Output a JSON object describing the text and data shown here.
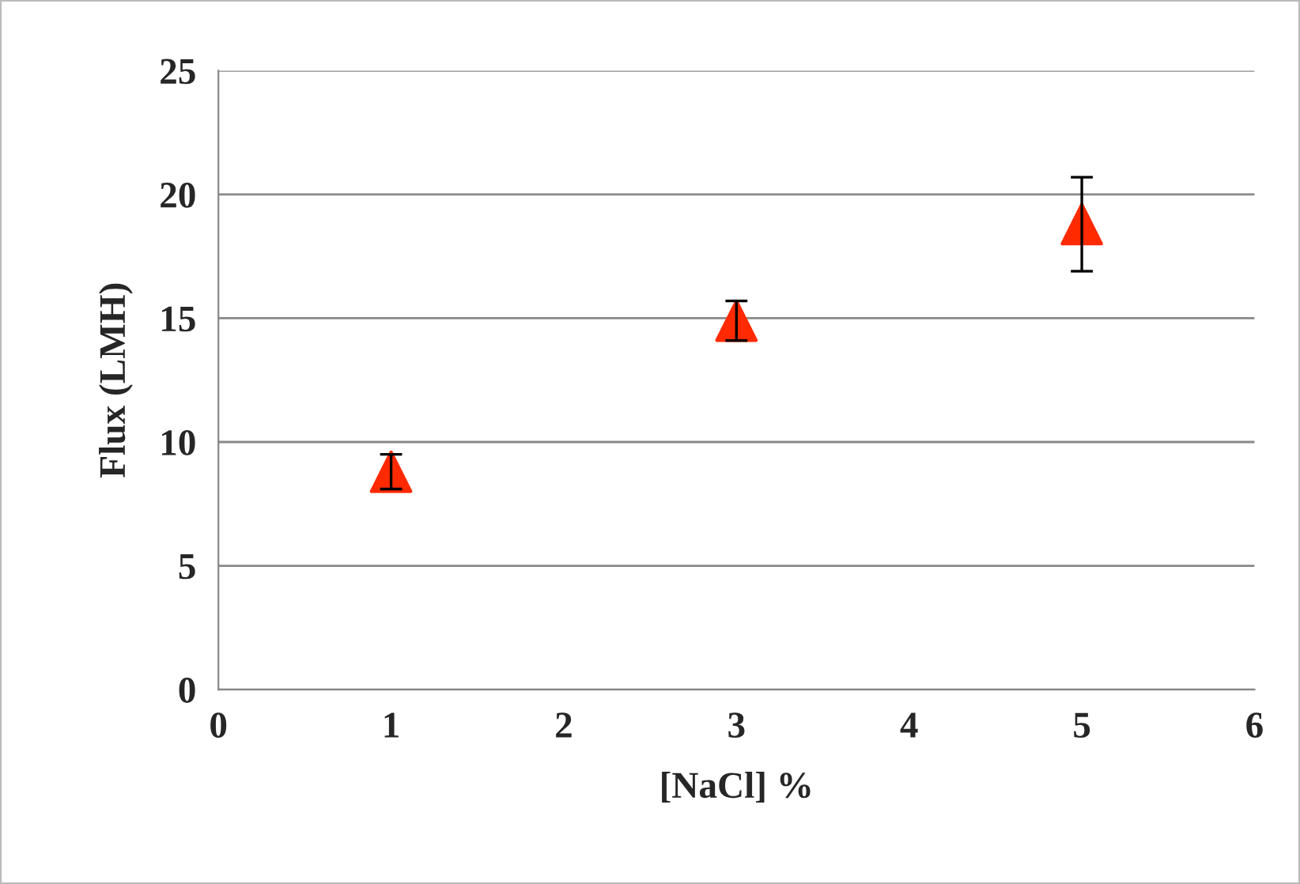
{
  "chart_data": {
    "type": "scatter",
    "xlabel": "[NaCl] %",
    "ylabel": "Flux (LMH)",
    "x": [
      1,
      3,
      5
    ],
    "series": [
      {
        "color": "#ff2a00",
        "values": [
          8.8,
          14.9,
          18.8
        ],
        "errors": [
          0.7,
          0.8,
          1.9
        ]
      }
    ],
    "xlim": [
      0,
      6
    ],
    "xticks": [
      0,
      1,
      2,
      3,
      4,
      5,
      6
    ],
    "ylim": [
      0,
      25
    ],
    "yticks": [
      0,
      5,
      10,
      15,
      20,
      25
    ],
    "grid": "y",
    "marker": "triangle",
    "legend": false
  }
}
